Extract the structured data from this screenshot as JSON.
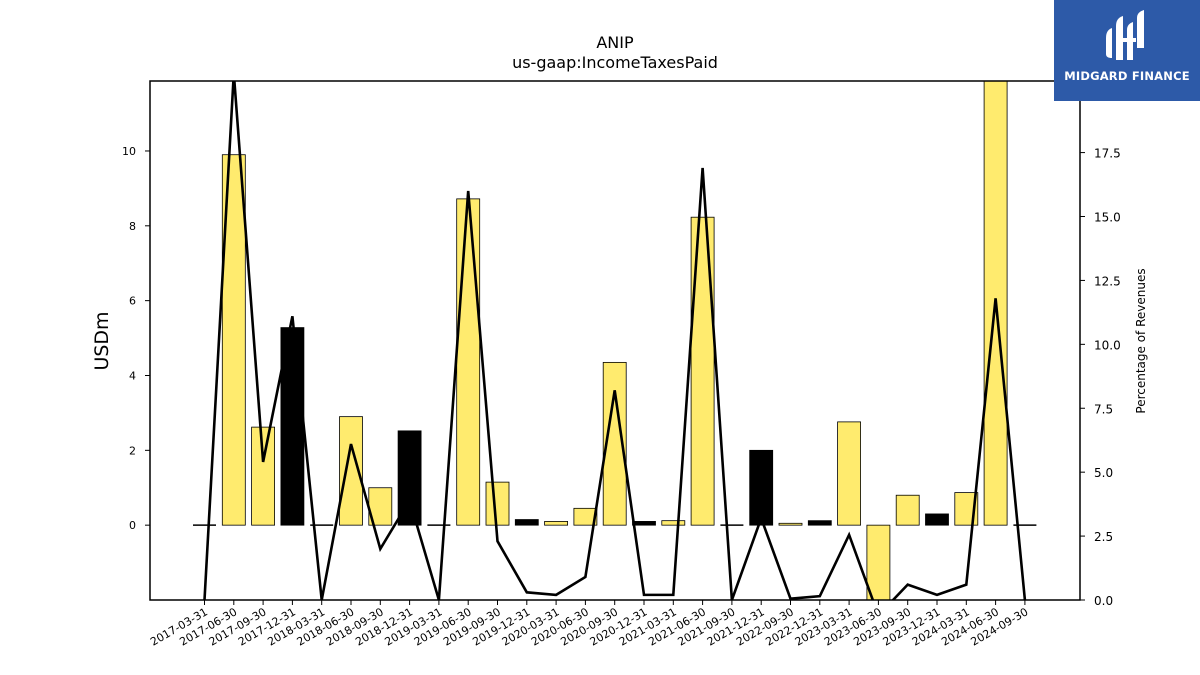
{
  "chart_data": {
    "type": "bar",
    "title": "ANIP",
    "subtitle": "us-gaap:IncomeTaxesPaid",
    "ylabel": "USDm",
    "y2label": "Percentage of Revenues",
    "ylim": [
      -2,
      11.87
    ],
    "y2lim": [
      0,
      20.3
    ],
    "yticks": [
      0,
      2,
      4,
      6,
      8,
      10
    ],
    "y2ticks": [
      "0.0",
      "2.5",
      "5.0",
      "7.5",
      "10.0",
      "12.5",
      "15.0",
      "17.5"
    ],
    "categories": [
      "2017-03-31",
      "2017-06-30",
      "2017-09-30",
      "2017-12-31",
      "2018-03-31",
      "2018-06-30",
      "2018-09-30",
      "2018-12-31",
      "2019-03-31",
      "2019-06-30",
      "2019-09-30",
      "2019-12-31",
      "2020-03-31",
      "2020-06-30",
      "2020-09-30",
      "2020-12-31",
      "2021-03-31",
      "2021-06-30",
      "2021-09-30",
      "2021-12-31",
      "2022-09-30",
      "2022-12-31",
      "2023-03-31",
      "2023-06-30",
      "2023-09-30",
      "2023-12-31",
      "2024-03-31",
      "2024-06-30",
      "2024-09-30"
    ],
    "series": [
      {
        "kind": "bar",
        "values": [
          0,
          9.9,
          2.62,
          5.28,
          0,
          2.9,
          1.0,
          2.52,
          0,
          8.72,
          1.15,
          0.15,
          0.1,
          0.45,
          4.35,
          0.1,
          0.12,
          8.23,
          0,
          2.0,
          0.05,
          0.12,
          2.76,
          -2.2,
          0.8,
          0.3,
          0.87,
          12.2,
          0
        ],
        "colors": [
          "#000000",
          "#ffeb6e",
          "#ffeb6e",
          "#000000",
          "#000000",
          "#ffeb6e",
          "#ffeb6e",
          "#000000",
          "#000000",
          "#ffeb6e",
          "#ffeb6e",
          "#000000",
          "#ffeb6e",
          "#ffeb6e",
          "#ffeb6e",
          "#000000",
          "#ffeb6e",
          "#ffeb6e",
          "#000000",
          "#000000",
          "#ffeb6e",
          "#000000",
          "#ffeb6e",
          "#ffeb6e",
          "#ffeb6e",
          "#000000",
          "#ffeb6e",
          "#ffeb6e",
          "#000000"
        ]
      },
      {
        "kind": "line",
        "axis": "right",
        "color": "#000000",
        "values": [
          0,
          20.6,
          5.4,
          11.1,
          0,
          6.1,
          2.0,
          3.9,
          0,
          16.0,
          2.3,
          0.3,
          0.2,
          0.9,
          8.2,
          0.2,
          0.2,
          16.9,
          0,
          3.2,
          0.05,
          0.15,
          2.55,
          -0.6,
          0.6,
          0.2,
          0.6,
          11.8,
          0
        ]
      }
    ],
    "grid": false
  },
  "logo": {
    "text": "MIDGARD FINANCE",
    "bg_color": "#2d5aa8",
    "icon": "midgard-logo-icon"
  }
}
